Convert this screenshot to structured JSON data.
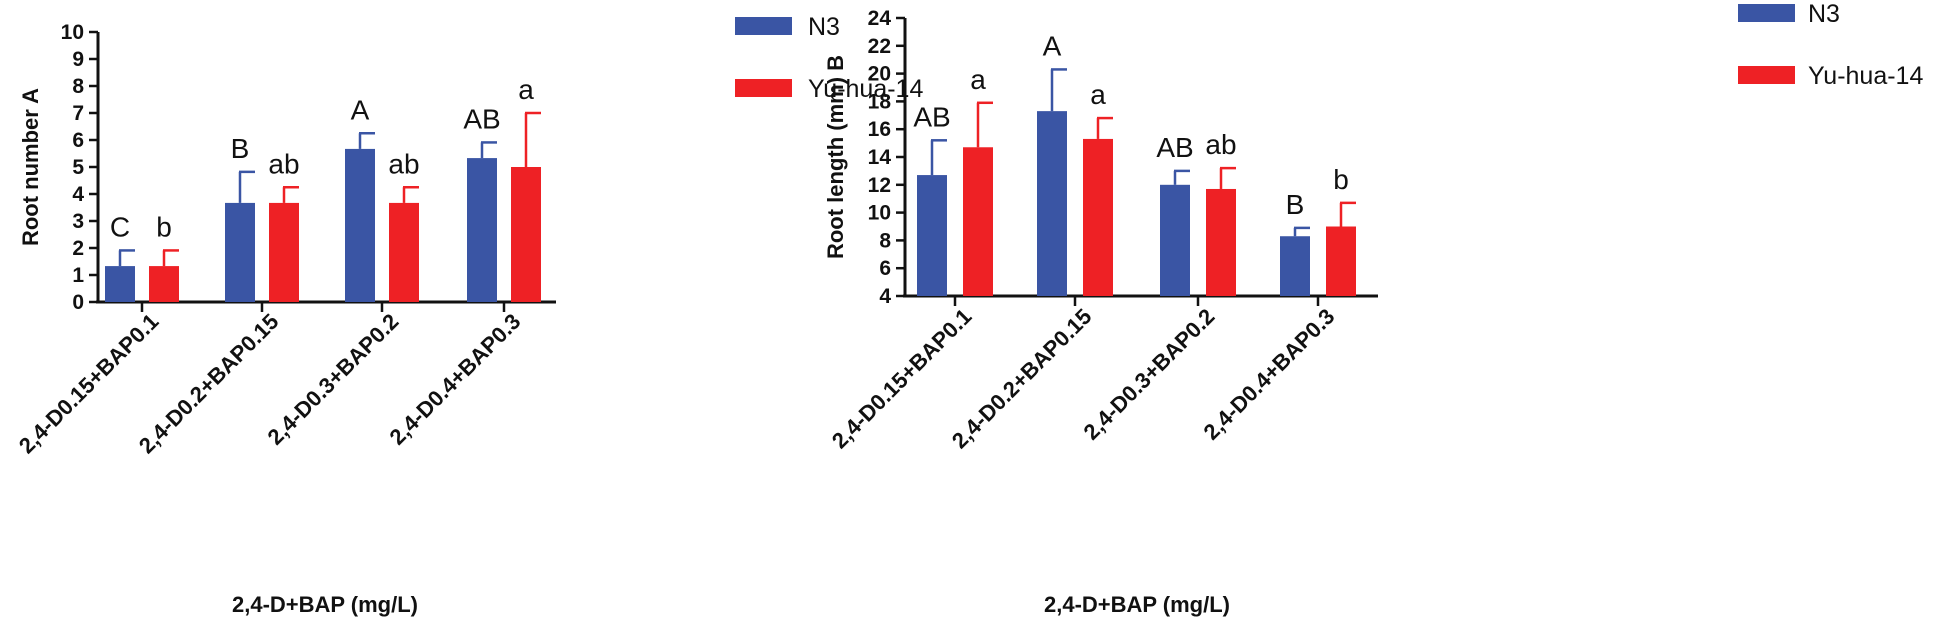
{
  "chart_data": [
    {
      "type": "bar",
      "categories": [
        "2,4-D0.15+BAP0.1",
        "2,4-D0.2+BAP0.15",
        "2,4-D0.3+BAP0.2",
        "2,4-D0.4+BAP0.3"
      ],
      "ylabel": "Root number A",
      "xlabel": "2,4-D+BAP (mg/L)",
      "ylim": [
        0,
        10
      ],
      "yticks": [
        "0",
        "1",
        "2",
        "3",
        "4",
        "5",
        "6",
        "7",
        "8",
        "9",
        "10"
      ],
      "legend_position": "top-right",
      "series": [
        {
          "name": "N3",
          "color": "#3a55a4",
          "values": [
            1.33,
            3.67,
            5.67,
            5.33
          ],
          "errors": [
            0.58,
            1.15,
            0.58,
            0.58
          ],
          "letters": [
            "C",
            "B",
            "A",
            "AB"
          ]
        },
        {
          "name": "Yu-hua-14",
          "color": "#ee2125",
          "values": [
            1.33,
            3.67,
            3.67,
            5.0
          ],
          "errors": [
            0.58,
            0.58,
            0.58,
            2.0
          ],
          "letters": [
            "b",
            "ab",
            "ab",
            "a"
          ]
        }
      ]
    },
    {
      "type": "bar",
      "categories": [
        "2,4-D0.15+BAP0.1",
        "2,4-D0.2+BAP0.15",
        "2,4-D0.3+BAP0.2",
        "2,4-D0.4+BAP0.3"
      ],
      "ylabel": "Root length (mm) B",
      "xlabel": "2,4-D+BAP (mg/L)",
      "ylim": [
        4,
        24
      ],
      "yticks": [
        "4",
        "6",
        "8",
        "10",
        "12",
        "14",
        "16",
        "18",
        "20",
        "22",
        "24"
      ],
      "legend_position": "top-right",
      "series": [
        {
          "name": "N3",
          "color": "#3a55a4",
          "values": [
            12.7,
            17.3,
            12.0,
            8.3
          ],
          "errors": [
            2.5,
            3.0,
            1.0,
            0.6
          ],
          "letters": [
            "AB",
            "A",
            "AB",
            "B"
          ]
        },
        {
          "name": "Yu-hua-14",
          "color": "#ee2125",
          "values": [
            14.7,
            15.3,
            11.7,
            9.0
          ],
          "errors": [
            3.2,
            1.5,
            1.5,
            1.7
          ],
          "letters": [
            "a",
            "a",
            "ab",
            "b"
          ]
        }
      ]
    }
  ]
}
